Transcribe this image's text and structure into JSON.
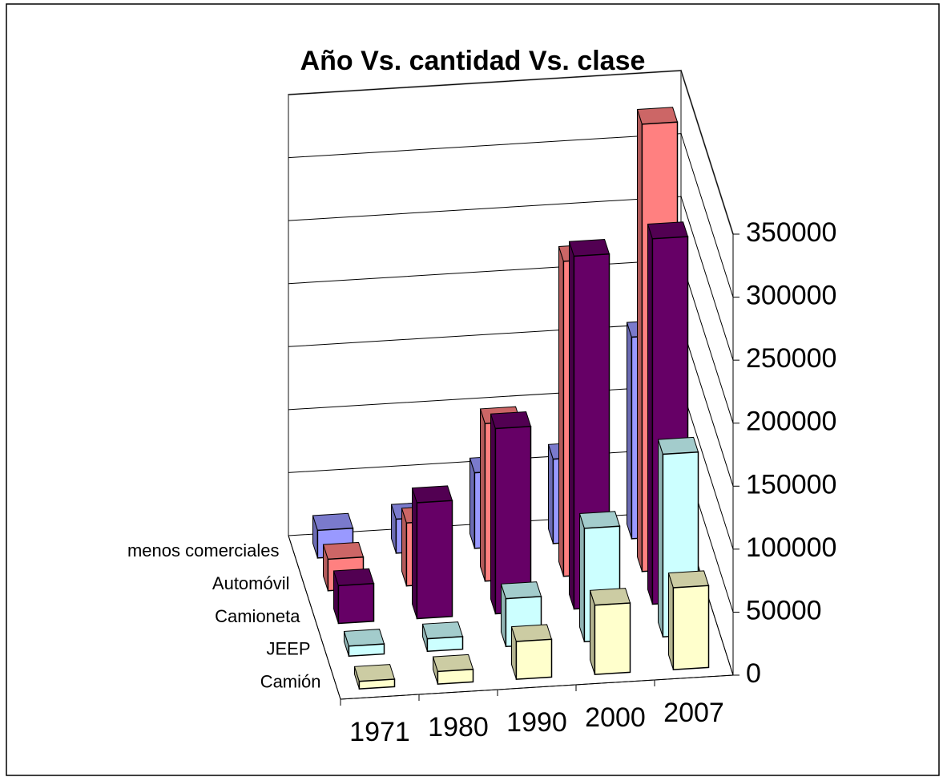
{
  "chart_data": {
    "type": "bar3d",
    "title": "Año   Vs. cantidad   Vs. clase",
    "categories": [
      "1971",
      "1980",
      "1990",
      "2000",
      "2007"
    ],
    "series": [
      {
        "name": "menos comerciales",
        "color": "#9999ff",
        "values": [
          22000,
          27000,
          60000,
          67000,
          160000
        ]
      },
      {
        "name": "Automóvil",
        "color": "#ff8080",
        "values": [
          25000,
          50000,
          125000,
          250000,
          355000
        ]
      },
      {
        "name": "Camioneta",
        "color": "#660066",
        "values": [
          30000,
          92000,
          147000,
          280000,
          290000
        ]
      },
      {
        "name": "JEEP",
        "color": "#ccffff",
        "values": [
          8000,
          10000,
          38000,
          90000,
          145000
        ]
      },
      {
        "name": "Camión",
        "color": "#ffffcc",
        "values": [
          6000,
          10000,
          30000,
          55000,
          65000
        ]
      }
    ],
    "ylim": [
      0,
      350000
    ],
    "yticks": [
      0,
      50000,
      100000,
      150000,
      200000,
      250000,
      300000,
      350000
    ],
    "grid": true
  }
}
